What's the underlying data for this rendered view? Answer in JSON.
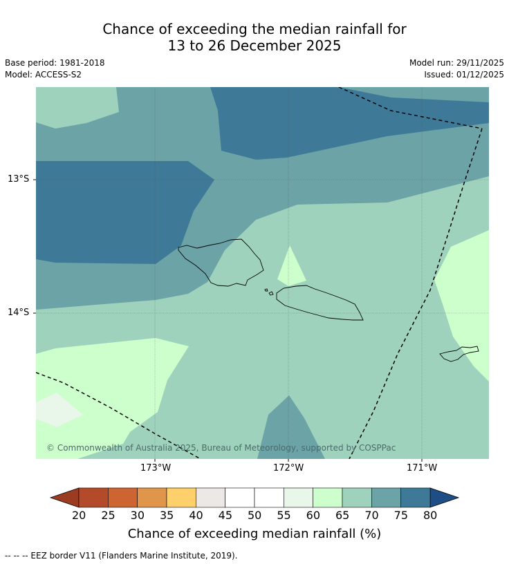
{
  "title_line1": "Chance of exceeding the median rainfall for",
  "title_line2": "13 to 26 December 2025",
  "base_period": "Base period: 1981-2018",
  "model": "Model: ACCESS-S2",
  "model_run": "Model run: 29/11/2025",
  "issued": "Issued: 01/12/2025",
  "map": {
    "lat_labels": [
      "13°S",
      "14°S"
    ],
    "lon_labels": [
      "173°W",
      "172°W",
      "171°W"
    ],
    "copyright": "© Commonwealth of Australia 2025, Bureau of Meteorology, supported by COSPPac"
  },
  "colorbar": {
    "ticks": [
      "20",
      "25",
      "30",
      "35",
      "40",
      "45",
      "50",
      "55",
      "60",
      "65",
      "70",
      "75",
      "80"
    ],
    "colors": [
      "#b34b2a",
      "#cd6533",
      "#e0964a",
      "#fdd06b",
      "#ece8e6",
      "#ffffff",
      "#ffffff",
      "#e9f6ea",
      "#ccffcc",
      "#9ed2bc",
      "#6ba3a6",
      "#3e7a98"
    ],
    "low_color": "#9a3b22",
    "high_color": "#1e4e86",
    "label": "Chance of exceeding median rainfall (%)"
  },
  "footnote": "--  --  -- EEZ border V11 (Flanders Marine Institute, 2019)."
}
